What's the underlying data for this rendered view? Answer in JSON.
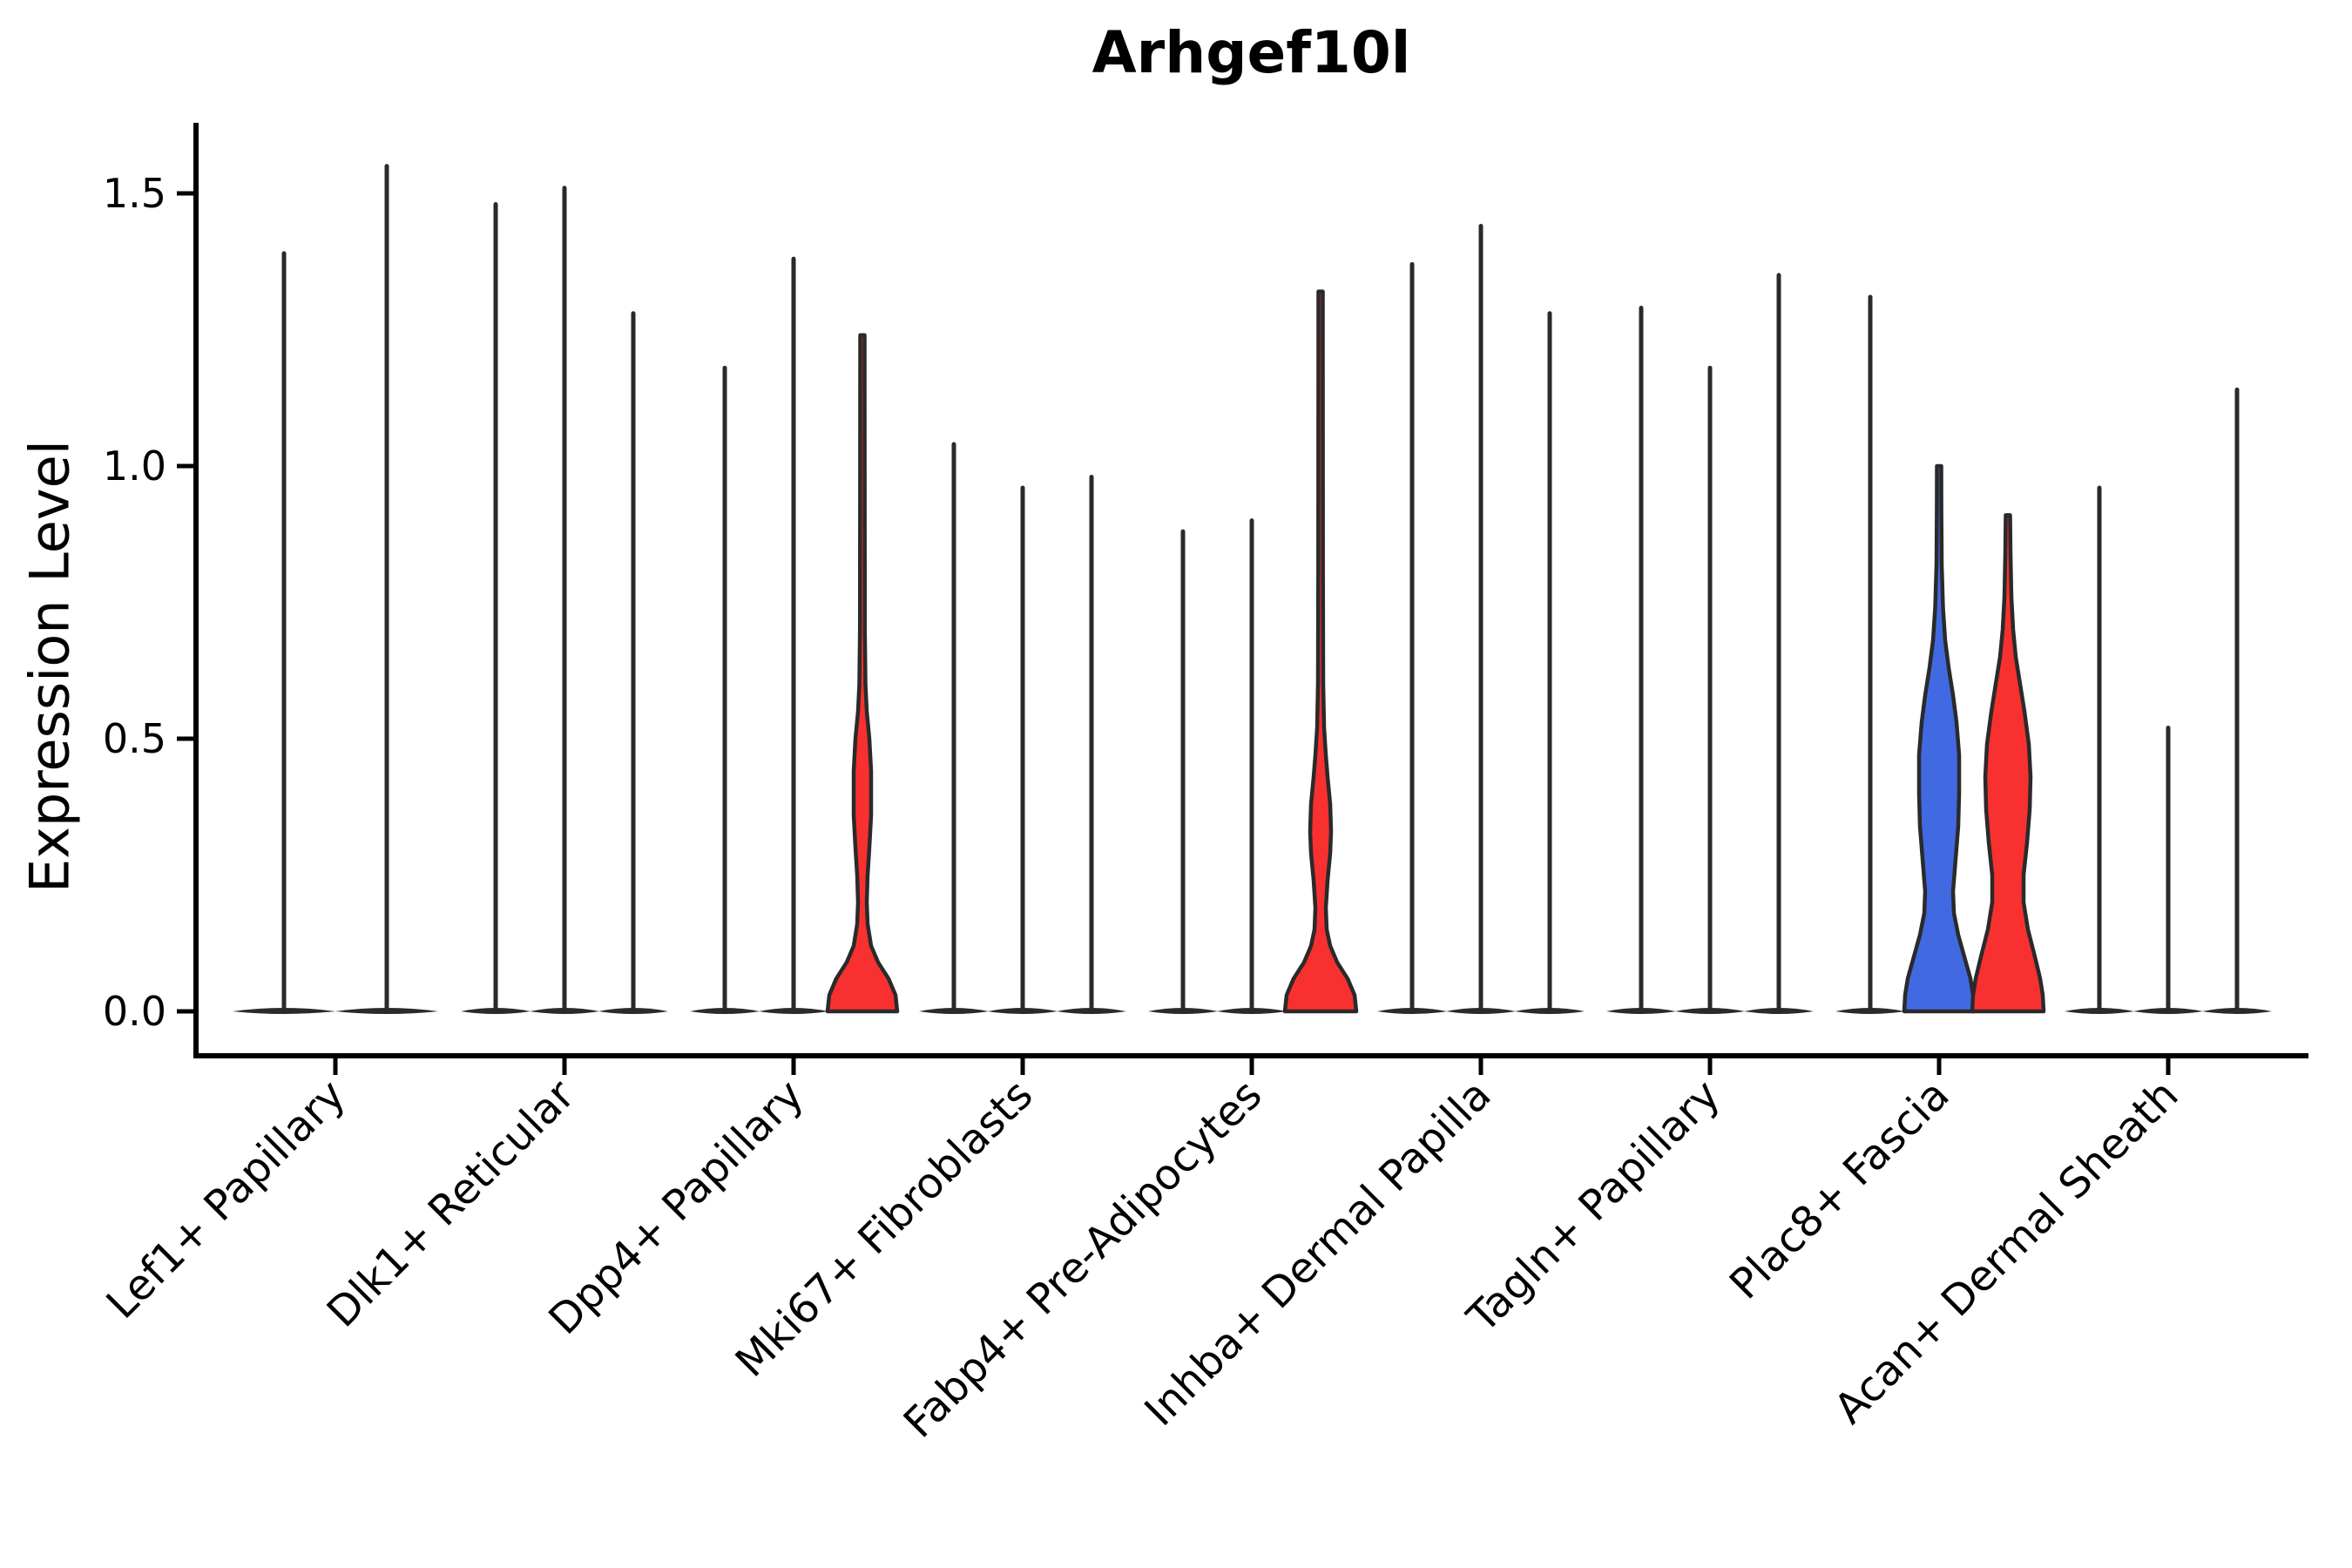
{
  "chart_data": {
    "type": "violin",
    "title": "Arhgef10l",
    "ylabel": "Expression Level",
    "yticks": [
      0.0,
      0.5,
      1.0,
      1.5
    ],
    "ytick_labels": [
      "0.0",
      "0.5",
      "1.0",
      "1.5"
    ],
    "ylim": [
      -0.05,
      1.65
    ],
    "grid": false,
    "legend": "none",
    "colors": {
      "spike": "#2a2a2a",
      "outline": "#2a2a2a",
      "axis": "#000000",
      "red": "#f93030",
      "blue": "#4169e1"
    },
    "categories": [
      {
        "label": "Lef1+ Papillary",
        "violins": [
          {
            "max": 1.39
          },
          {
            "max": 1.55
          }
        ]
      },
      {
        "label": "Dlk1+ Reticular",
        "violins": [
          {
            "max": 1.48
          },
          {
            "max": 1.51
          },
          {
            "max": 1.28
          }
        ]
      },
      {
        "label": "Dpp4+ Papillary",
        "violins": [
          {
            "max": 1.18
          },
          {
            "max": 1.38
          },
          {
            "max": 1.24,
            "color": "red",
            "profile": [
              [
                0,
                40
              ],
              [
                0.03,
                38
              ],
              [
                0.06,
                30
              ],
              [
                0.09,
                18
              ],
              [
                0.12,
                10
              ],
              [
                0.16,
                6
              ],
              [
                0.2,
                5
              ],
              [
                0.25,
                6
              ],
              [
                0.3,
                8
              ],
              [
                0.36,
                10
              ],
              [
                0.44,
                10
              ],
              [
                0.5,
                8
              ],
              [
                0.55,
                5
              ],
              [
                0.6,
                3.5
              ],
              [
                0.7,
                2.8
              ],
              [
                1.0,
                2.6
              ],
              [
                1.24,
                2.5
              ]
            ]
          }
        ]
      },
      {
        "label": "Mki67+ Fibroblasts",
        "violins": [
          {
            "max": 1.04
          },
          {
            "max": 0.96
          },
          {
            "max": 0.98
          }
        ]
      },
      {
        "label": "Fabp4+ Pre-Adipocytes",
        "violins": [
          {
            "max": 0.88
          },
          {
            "max": 0.9
          },
          {
            "max": 1.32,
            "color": "red",
            "profile": [
              [
                0,
                41
              ],
              [
                0.03,
                39
              ],
              [
                0.06,
                31
              ],
              [
                0.09,
                19
              ],
              [
                0.12,
                11
              ],
              [
                0.15,
                7
              ],
              [
                0.19,
                6
              ],
              [
                0.24,
                8
              ],
              [
                0.29,
                11
              ],
              [
                0.33,
                12
              ],
              [
                0.38,
                11
              ],
              [
                0.43,
                8
              ],
              [
                0.47,
                6
              ],
              [
                0.52,
                4
              ],
              [
                0.6,
                3
              ],
              [
                0.8,
                2.7
              ],
              [
                1.0,
                2.6
              ],
              [
                1.32,
                2.5
              ]
            ]
          }
        ]
      },
      {
        "label": "Inhba+ Dermal Papilla",
        "violins": [
          {
            "max": 1.37
          },
          {
            "max": 1.44
          },
          {
            "max": 1.28
          }
        ]
      },
      {
        "label": "Tagln+ Papillary",
        "violins": [
          {
            "max": 1.29
          },
          {
            "max": 1.18
          },
          {
            "max": 1.35
          }
        ]
      },
      {
        "label": "Plac8+ Fascia",
        "violins": [
          {
            "max": 1.31
          },
          {
            "max": 1.0,
            "color": "blue",
            "profile": [
              [
                0,
                40
              ],
              [
                0.03,
                39
              ],
              [
                0.06,
                36
              ],
              [
                0.1,
                29
              ],
              [
                0.14,
                22
              ],
              [
                0.18,
                17
              ],
              [
                0.22,
                16
              ],
              [
                0.28,
                19
              ],
              [
                0.34,
                22
              ],
              [
                0.4,
                23
              ],
              [
                0.47,
                23
              ],
              [
                0.53,
                20
              ],
              [
                0.58,
                16
              ],
              [
                0.63,
                11
              ],
              [
                0.68,
                7
              ],
              [
                0.74,
                4.5
              ],
              [
                0.82,
                3
              ],
              [
                0.92,
                2.6
              ],
              [
                1.0,
                2.5
              ]
            ],
            "top_value": "1.0"
          },
          {
            "max": 0.91,
            "color": "red",
            "profile": [
              [
                0,
                41
              ],
              [
                0.03,
                40
              ],
              [
                0.06,
                37
              ],
              [
                0.1,
                31
              ],
              [
                0.15,
                23
              ],
              [
                0.2,
                18
              ],
              [
                0.25,
                18
              ],
              [
                0.31,
                22
              ],
              [
                0.37,
                25
              ],
              [
                0.43,
                26
              ],
              [
                0.49,
                24
              ],
              [
                0.55,
                19
              ],
              [
                0.6,
                14
              ],
              [
                0.65,
                9
              ],
              [
                0.7,
                6
              ],
              [
                0.76,
                4
              ],
              [
                0.84,
                3
              ],
              [
                0.91,
                2.5
              ]
            ]
          }
        ]
      },
      {
        "label": "Acan+ Dermal Sheath",
        "violins": [
          {
            "max": 0.96
          },
          {
            "max": 0.52
          },
          {
            "max": 1.14
          }
        ]
      }
    ]
  }
}
